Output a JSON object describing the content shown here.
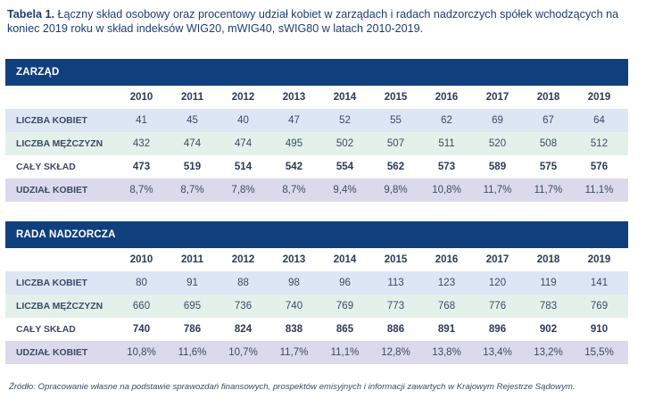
{
  "caption": {
    "prefix": "Tabela 1.",
    "text": " Łączny skład osobowy oraz procentowy udział kobiet w zarządach i radach nadzorczych spółek wchodzących na koniec 2019 roku w skład indeksów WIG20, mWIG40, sWIG80 w latach 2010-2019."
  },
  "tables": [
    {
      "title": "ZARZĄD",
      "years": [
        "2010",
        "2011",
        "2012",
        "2013",
        "2014",
        "2015",
        "2016",
        "2017",
        "2018",
        "2019"
      ],
      "rows": [
        {
          "label": "LICZBA KOBIET",
          "values": [
            "41",
            "45",
            "40",
            "47",
            "52",
            "55",
            "62",
            "69",
            "67",
            "64"
          ]
        },
        {
          "label": "LICZBA MĘŻCZYZN",
          "values": [
            "432",
            "474",
            "474",
            "495",
            "502",
            "507",
            "511",
            "520",
            "508",
            "512"
          ]
        },
        {
          "label": "CAŁY SKŁAD",
          "values": [
            "473",
            "519",
            "514",
            "542",
            "554",
            "562",
            "573",
            "589",
            "575",
            "576"
          ]
        },
        {
          "label": "UDZIAŁ KOBIET",
          "values": [
            "8,7%",
            "8,7%",
            "7,8%",
            "8,7%",
            "9,4%",
            "9,8%",
            "10,8%",
            "11,7%",
            "11,7%",
            "11,1%"
          ]
        }
      ]
    },
    {
      "title": "RADA NADZORCZA",
      "years": [
        "2010",
        "2011",
        "2012",
        "2013",
        "2014",
        "2015",
        "2016",
        "2017",
        "2018",
        "2019"
      ],
      "rows": [
        {
          "label": "LICZBA KOBIET",
          "values": [
            "80",
            "91",
            "88",
            "98",
            "96",
            "113",
            "123",
            "120",
            "119",
            "141"
          ]
        },
        {
          "label": "LICZBA MĘŻCZYZN",
          "values": [
            "660",
            "695",
            "736",
            "740",
            "769",
            "773",
            "768",
            "776",
            "783",
            "769"
          ]
        },
        {
          "label": "CAŁY SKŁAD",
          "values": [
            "740",
            "786",
            "824",
            "838",
            "865",
            "886",
            "891",
            "896",
            "902",
            "910"
          ]
        },
        {
          "label": "UDZIAŁ KOBIET",
          "values": [
            "10,8%",
            "11,6%",
            "10,7%",
            "11,7%",
            "11,1%",
            "12,8%",
            "13,8%",
            "13,4%",
            "13,2%",
            "15,5%"
          ]
        }
      ]
    }
  ],
  "source": "Źródło: Opracowanie własne na podstawie sprawozdań finansowych, prospektów emisyjnych i informacji zawartych w Krajowym Rejestrze Sądowym."
}
